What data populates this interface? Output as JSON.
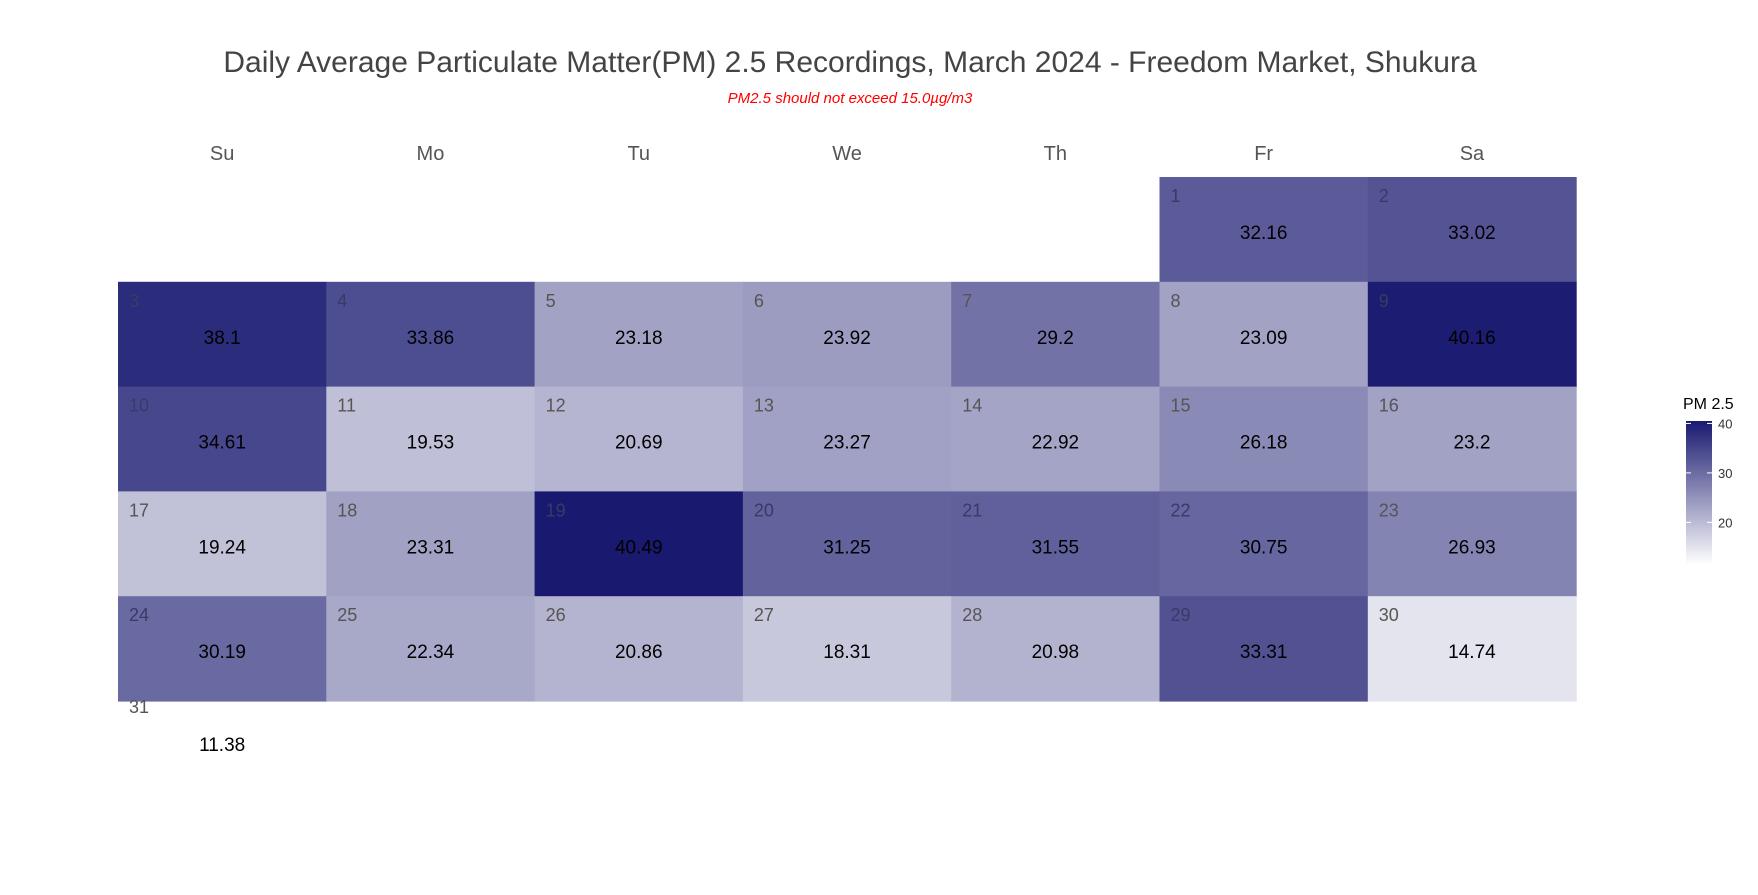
{
  "chart_data": {
    "type": "heatmap",
    "title": "Daily Average Particulate Matter(PM) 2.5 Recordings, March 2024 - Freedom Market, Shukura",
    "subtitle": "PM2.5 should not exceed 15.0µg/m3",
    "subtitle_color": "#ff0000",
    "weekdays": [
      "Su",
      "Mo",
      "Tu",
      "We",
      "Th",
      "Fr",
      "Sa"
    ],
    "first_weekday_index": 5,
    "days": [
      {
        "day": 1,
        "value": 32.16
      },
      {
        "day": 2,
        "value": 33.02
      },
      {
        "day": 3,
        "value": 38.1
      },
      {
        "day": 4,
        "value": 33.86
      },
      {
        "day": 5,
        "value": 23.18
      },
      {
        "day": 6,
        "value": 23.92
      },
      {
        "day": 7,
        "value": 29.2
      },
      {
        "day": 8,
        "value": 23.09
      },
      {
        "day": 9,
        "value": 40.16
      },
      {
        "day": 10,
        "value": 34.61
      },
      {
        "day": 11,
        "value": 19.53
      },
      {
        "day": 12,
        "value": 20.69
      },
      {
        "day": 13,
        "value": 23.27
      },
      {
        "day": 14,
        "value": 22.92
      },
      {
        "day": 15,
        "value": 26.18
      },
      {
        "day": 16,
        "value": 23.2
      },
      {
        "day": 17,
        "value": 19.24
      },
      {
        "day": 18,
        "value": 23.31
      },
      {
        "day": 19,
        "value": 40.49
      },
      {
        "day": 20,
        "value": 31.25
      },
      {
        "day": 21,
        "value": 31.55
      },
      {
        "day": 22,
        "value": 30.75
      },
      {
        "day": 23,
        "value": 26.93
      },
      {
        "day": 24,
        "value": 30.19
      },
      {
        "day": 25,
        "value": 22.34
      },
      {
        "day": 26,
        "value": 20.86
      },
      {
        "day": 27,
        "value": 18.31
      },
      {
        "day": 28,
        "value": 20.98
      },
      {
        "day": 29,
        "value": 33.31
      },
      {
        "day": 30,
        "value": 14.74
      },
      {
        "day": 31,
        "value": 11.38
      }
    ],
    "legend": {
      "title": "PM 2.5",
      "ticks": [
        20,
        30,
        40
      ],
      "range": [
        11.38,
        40.49
      ],
      "color_low": "#ffffff",
      "color_high": "#191970"
    }
  }
}
